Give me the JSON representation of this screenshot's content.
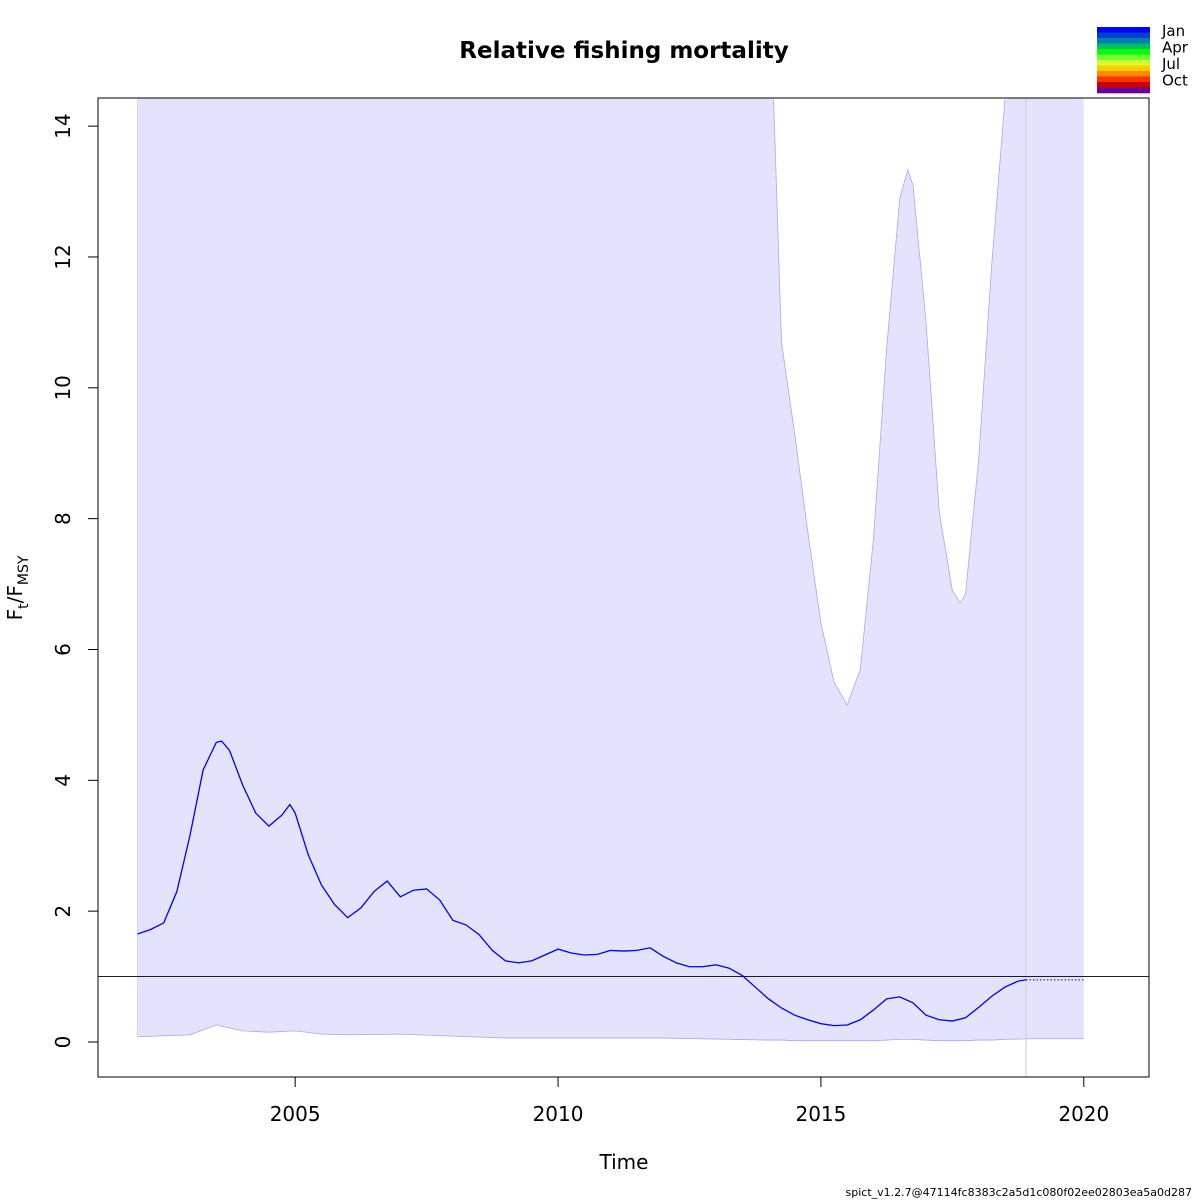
{
  "chart_data": {
    "type": "line",
    "title": "Relative fishing mortality",
    "x_label": "Time",
    "y_label": [
      {
        "text": "F"
      },
      {
        "text": "t",
        "sub": true
      },
      {
        "text": "/F"
      },
      {
        "text": "MSY",
        "sub": true
      }
    ],
    "footer": "spict_v1.2.7@47114fc8383c2a5d1c080f02ee02803ea5a0d287",
    "xlim": [
      2001.25,
      2021.24
    ],
    "ylim": [
      -0.535,
      14.43
    ],
    "xticks": [
      2005,
      2010,
      2015,
      2020
    ],
    "yticks": [
      0,
      2,
      4,
      6,
      8,
      10,
      12,
      14
    ],
    "estimate": {
      "color": "#0000ee",
      "x": [
        2002,
        2002.25,
        2002.5,
        2002.75,
        2003,
        2003.25,
        2003.5,
        2003.6,
        2003.75,
        2004,
        2004.25,
        2004.5,
        2004.75,
        2004.9,
        2005,
        2005.25,
        2005.5,
        2005.75,
        2006,
        2006.25,
        2006.5,
        2006.75,
        2007,
        2007.25,
        2007.5,
        2007.75,
        2008,
        2008.25,
        2008.5,
        2008.75,
        2009,
        2009.25,
        2009.5,
        2009.75,
        2010,
        2010.25,
        2010.5,
        2010.75,
        2011,
        2011.25,
        2011.5,
        2011.75,
        2012,
        2012.25,
        2012.5,
        2012.75,
        2013,
        2013.25,
        2013.5,
        2013.75,
        2014,
        2014.25,
        2014.5,
        2014.75,
        2015,
        2015.25,
        2015.5,
        2015.75,
        2016,
        2016.25,
        2016.5,
        2016.75,
        2017,
        2017.25,
        2017.5,
        2017.75,
        2018,
        2018.25,
        2018.5,
        2018.75,
        2018.9
      ],
      "values": [
        1.65,
        1.72,
        1.82,
        2.3,
        3.16,
        4.16,
        4.58,
        4.6,
        4.46,
        3.93,
        3.5,
        3.3,
        3.47,
        3.63,
        3.5,
        2.86,
        2.4,
        2.1,
        1.9,
        2.05,
        2.3,
        2.46,
        2.22,
        2.32,
        2.34,
        2.17,
        1.86,
        1.79,
        1.64,
        1.4,
        1.24,
        1.21,
        1.24,
        1.33,
        1.42,
        1.36,
        1.33,
        1.34,
        1.4,
        1.39,
        1.4,
        1.44,
        1.31,
        1.21,
        1.15,
        1.15,
        1.18,
        1.13,
        1.02,
        0.84,
        0.66,
        0.52,
        0.41,
        0.34,
        0.28,
        0.25,
        0.26,
        0.34,
        0.49,
        0.66,
        0.69,
        0.6,
        0.41,
        0.34,
        0.32,
        0.37,
        0.53,
        0.7,
        0.84,
        0.93,
        0.95
      ]
    },
    "prediction": {
      "color": "#0000ee",
      "dotted": true,
      "x": [
        2018.9,
        2020
      ],
      "values": [
        0.95,
        0.95
      ]
    },
    "ci": {
      "color": "#e3e3fd",
      "edge_color": "#a8a8f0",
      "x": [
        2002,
        2003,
        2003.5,
        2004,
        2004.5,
        2005,
        2005.5,
        2006,
        2007,
        2008,
        2009,
        2010,
        2012,
        2014,
        2014.1,
        2014.25,
        2014.5,
        2014.75,
        2015,
        2015.25,
        2015.5,
        2015.75,
        2016,
        2016.25,
        2016.5,
        2016.65,
        2016.75,
        2017,
        2017.25,
        2017.5,
        2017.65,
        2017.75,
        2018,
        2018.25,
        2018.5,
        2019,
        2020
      ],
      "lower": [
        0.08,
        0.11,
        0.26,
        0.17,
        0.15,
        0.17,
        0.12,
        0.11,
        0.12,
        0.09,
        0.06,
        0.06,
        0.06,
        0.03,
        0.03,
        0.03,
        0.02,
        0.02,
        0.02,
        0.02,
        0.02,
        0.02,
        0.02,
        0.03,
        0.04,
        0.04,
        0.04,
        0.03,
        0.02,
        0.02,
        0.02,
        0.02,
        0.03,
        0.03,
        0.04,
        0.05,
        0.05
      ],
      "upper": [
        null,
        null,
        null,
        null,
        null,
        null,
        null,
        null,
        null,
        null,
        null,
        null,
        null,
        null,
        14.4,
        10.7,
        9.3,
        7.8,
        6.4,
        5.5,
        5.15,
        5.7,
        7.7,
        10.6,
        12.9,
        13.33,
        13.1,
        11.0,
        8.1,
        6.9,
        6.71,
        6.85,
        8.9,
        11.9,
        14.4,
        null,
        null
      ]
    },
    "hline": {
      "value": 1,
      "color": "#000000"
    },
    "vline": {
      "value": 2018.9,
      "color": "#cccccc"
    },
    "legend": {
      "labels": [
        "Jan",
        "Apr",
        "Jul",
        "Oct"
      ],
      "colors": [
        "#0000ff",
        "#0040d0",
        "#0080b0",
        "#00c060",
        "#00ff00",
        "#70ff30",
        "#d0ff30",
        "#ffcc00",
        "#ff8800",
        "#ff3300",
        "#cc0000",
        "#660099"
      ]
    }
  }
}
